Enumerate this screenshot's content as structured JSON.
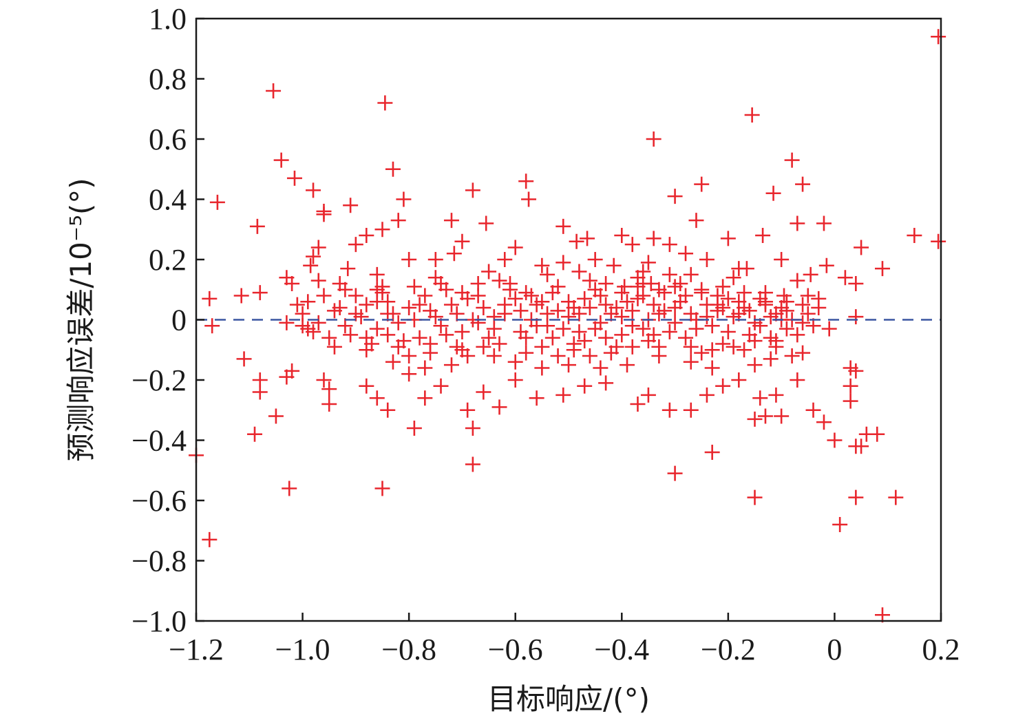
{
  "chart_data": {
    "type": "scatter",
    "xlabel": "目标响应/(°)",
    "ylabel": "预测响应误差/10⁻⁵(°)",
    "xlim": [
      -1.2,
      0.2
    ],
    "ylim": [
      -1.0,
      1.0
    ],
    "x_ticks": [
      -1.2,
      -1.0,
      -0.8,
      -0.6,
      -0.4,
      -0.2,
      0,
      0.2
    ],
    "y_ticks": [
      -1.0,
      -0.8,
      -0.6,
      -0.4,
      -0.2,
      0,
      0.2,
      0.4,
      0.6,
      0.8,
      1.0
    ],
    "x_tick_labels": [
      "−1.2",
      "−1.0",
      "−0.8",
      "−0.6",
      "−0.4",
      "−0.2",
      "0",
      "0.2"
    ],
    "y_tick_labels": [
      "−1.0",
      "−0.8",
      "−0.6",
      "−0.4",
      "−0.2",
      "0",
      "0.2",
      "0.4",
      "0.6",
      "0.8",
      "1.0"
    ],
    "reference_line": {
      "y": 0,
      "style": "dashed",
      "color": "#3a55a0"
    },
    "marker": "plus",
    "marker_color": "#e8262d",
    "points": [
      [
        0.195,
        0.94
      ],
      [
        0.195,
        0.26
      ],
      [
        -1.055,
        0.76
      ],
      [
        -0.845,
        0.72
      ],
      [
        -0.155,
        0.68
      ],
      [
        -0.34,
        0.6
      ],
      [
        -1.04,
        0.53
      ],
      [
        -0.83,
        0.5
      ],
      [
        -1.015,
        0.47
      ],
      [
        -0.08,
        0.53
      ],
      [
        -0.58,
        0.46
      ],
      [
        -0.06,
        0.45
      ],
      [
        -0.25,
        0.45
      ],
      [
        -0.68,
        0.43
      ],
      [
        -0.98,
        0.43
      ],
      [
        -0.3,
        0.41
      ],
      [
        -0.115,
        0.42
      ],
      [
        -0.575,
        0.4
      ],
      [
        -0.81,
        0.4
      ],
      [
        -1.16,
        0.39
      ],
      [
        -0.91,
        0.38
      ],
      [
        -0.96,
        0.35
      ],
      [
        -0.72,
        0.33
      ],
      [
        -1.085,
        0.31
      ],
      [
        -0.655,
        0.32
      ],
      [
        -0.51,
        0.31
      ],
      [
        -0.82,
        0.33
      ],
      [
        -0.07,
        0.32
      ],
      [
        -0.02,
        0.32
      ],
      [
        -0.26,
        0.33
      ],
      [
        -0.88,
        0.28
      ],
      [
        -0.4,
        0.28
      ],
      [
        -0.34,
        0.27
      ],
      [
        -0.465,
        0.27
      ],
      [
        -0.31,
        0.25
      ],
      [
        -0.135,
        0.28
      ],
      [
        -0.2,
        0.27
      ],
      [
        0.15,
        0.28
      ],
      [
        -0.97,
        0.24
      ],
      [
        -0.6,
        0.24
      ],
      [
        -0.38,
        0.25
      ],
      [
        0.05,
        0.24
      ],
      [
        -0.485,
        0.26
      ],
      [
        -0.715,
        0.22
      ],
      [
        -0.8,
        0.2
      ],
      [
        -0.98,
        0.21
      ],
      [
        -0.1,
        0.2
      ],
      [
        -0.015,
        0.18
      ],
      [
        0.09,
        0.17
      ],
      [
        -0.51,
        0.19
      ],
      [
        -0.985,
        0.18
      ],
      [
        -0.915,
        0.17
      ],
      [
        -0.415,
        0.18
      ],
      [
        -0.165,
        0.17
      ],
      [
        -0.045,
        0.15
      ],
      [
        -0.86,
        0.15
      ],
      [
        -0.75,
        0.14
      ],
      [
        -0.27,
        0.15
      ],
      [
        0.04,
        0.12
      ],
      [
        -1.115,
        0.08
      ],
      [
        -1.175,
        0.07
      ],
      [
        -1.08,
        0.09
      ],
      [
        -1.02,
        0.12
      ],
      [
        -0.095,
        0.08
      ],
      [
        -0.03,
        0.07
      ],
      [
        -1.17,
        -0.02
      ],
      [
        -0.395,
        0.11
      ],
      [
        -0.345,
        0.12
      ],
      [
        -0.43,
        0.05
      ],
      [
        -0.36,
        0.08
      ],
      [
        -0.33,
        0.02
      ],
      [
        -0.29,
        0.06
      ],
      [
        -0.25,
        0.09
      ],
      [
        -0.22,
        0.03
      ],
      [
        -0.2,
        0.07
      ],
      [
        -0.17,
        0.04
      ],
      [
        -0.15,
        -0.01
      ],
      [
        -0.13,
        0.05
      ],
      [
        -0.11,
        0.02
      ],
      [
        -0.09,
        -0.03
      ],
      [
        -0.56,
        0.05
      ],
      [
        -0.54,
        -0.02
      ],
      [
        -0.52,
        0.03
      ],
      [
        -0.5,
        0.01
      ],
      [
        -0.48,
        -0.04
      ],
      [
        -0.46,
        0.04
      ],
      [
        -0.44,
        -0.01
      ],
      [
        -0.42,
        0.02
      ],
      [
        -0.4,
        -0.05
      ],
      [
        -0.38,
        0.03
      ],
      [
        -0.62,
        0.02
      ],
      [
        -0.64,
        -0.03
      ],
      [
        -0.66,
        0.04
      ],
      [
        -0.68,
        0.0
      ],
      [
        -0.7,
        -0.04
      ],
      [
        -0.72,
        0.05
      ],
      [
        -0.74,
        -0.02
      ],
      [
        -0.76,
        0.03
      ],
      [
        -0.78,
        -0.06
      ],
      [
        -0.8,
        0.04
      ],
      [
        -0.82,
        -0.01
      ],
      [
        -0.84,
        0.06
      ],
      [
        -0.86,
        -0.03
      ],
      [
        -0.88,
        0.05
      ],
      [
        -0.9,
        0.02
      ],
      [
        -0.58,
        -0.06
      ],
      [
        -0.6,
        0.07
      ],
      [
        -0.63,
        -0.08
      ],
      [
        -0.67,
        0.08
      ],
      [
        -0.71,
        -0.09
      ],
      [
        -0.53,
        0.09
      ],
      [
        -0.49,
        -0.08
      ],
      [
        -0.45,
        0.1
      ],
      [
        -0.41,
        -0.09
      ],
      [
        -0.37,
        0.11
      ],
      [
        -0.35,
        -0.07
      ],
      [
        -0.32,
        0.09
      ],
      [
        -0.28,
        -0.06
      ],
      [
        -0.24,
        0.05
      ],
      [
        -0.21,
        -0.08
      ],
      [
        -0.57,
        0.0
      ],
      [
        -0.55,
        0.06
      ],
      [
        -0.59,
        -0.04
      ],
      [
        -0.61,
        0.1
      ],
      [
        -0.65,
        -0.06
      ],
      [
        -0.69,
        0.07
      ],
      [
        -0.73,
        -0.05
      ],
      [
        -0.77,
        0.08
      ],
      [
        -0.81,
        -0.07
      ],
      [
        -0.85,
        0.09
      ],
      [
        -0.47,
        0.07
      ],
      [
        -0.43,
        -0.06
      ],
      [
        -0.39,
        0.06
      ],
      [
        -0.36,
        -0.03
      ],
      [
        -0.34,
        0.05
      ],
      [
        -0.31,
        -0.04
      ],
      [
        -0.27,
        0.02
      ],
      [
        -0.23,
        -0.02
      ],
      [
        -0.19,
        0.01
      ],
      [
        -0.16,
        -0.05
      ],
      [
        -0.69,
        -0.12
      ],
      [
        -0.74,
        0.12
      ],
      [
        -0.63,
        0.13
      ],
      [
        -0.58,
        -0.11
      ],
      [
        -0.52,
        -0.12
      ],
      [
        -0.46,
        0.13
      ],
      [
        -0.42,
        -0.11
      ],
      [
        -0.37,
        0.14
      ],
      [
        -0.33,
        -0.12
      ],
      [
        -0.29,
        0.12
      ],
      [
        -0.25,
        -0.11
      ],
      [
        -0.21,
        0.11
      ],
      [
        -0.17,
        -0.1
      ],
      [
        -0.13,
        0.09
      ],
      [
        -0.11,
        -0.09
      ],
      [
        -0.8,
        -0.12
      ],
      [
        -0.85,
        0.11
      ],
      [
        -0.88,
        -0.1
      ],
      [
        -0.92,
        0.1
      ],
      [
        -0.94,
        -0.09
      ],
      [
        -0.96,
        0.08
      ],
      [
        -0.99,
        -0.03
      ],
      [
        -1.01,
        0.05
      ],
      [
        -1.03,
        -0.01
      ],
      [
        -1.0,
        0.02
      ],
      [
        -0.93,
        0.04
      ],
      [
        -0.91,
        -0.05
      ],
      [
        -0.89,
        0.01
      ],
      [
        -0.87,
        -0.08
      ],
      [
        -0.83,
        0.02
      ],
      [
        -0.79,
        0.0
      ],
      [
        -0.75,
        0.01
      ],
      [
        -0.71,
        0.02
      ],
      [
        -0.67,
        -0.01
      ],
      [
        -0.64,
        0.01
      ],
      [
        -0.56,
        -0.02
      ],
      [
        -0.53,
        -0.06
      ],
      [
        -0.5,
        0.06
      ],
      [
        -0.48,
        0.02
      ],
      [
        -0.45,
        -0.03
      ],
      [
        -0.41,
        0.04
      ],
      [
        -0.38,
        -0.02
      ],
      [
        -0.35,
        0.0
      ],
      [
        -0.32,
        0.03
      ],
      [
        -0.3,
        -0.01
      ],
      [
        -0.26,
        0.0
      ],
      [
        -0.22,
        0.05
      ],
      [
        -0.18,
        0.02
      ],
      [
        -0.14,
        -0.02
      ],
      [
        -0.12,
        0.01
      ],
      [
        -0.1,
        0.04
      ],
      [
        -0.08,
        0.0
      ],
      [
        -0.06,
        -0.01
      ],
      [
        -0.05,
        0.02
      ],
      [
        -0.04,
        -0.02
      ],
      [
        -0.6,
        -0.14
      ],
      [
        -0.55,
        -0.16
      ],
      [
        -0.5,
        -0.15
      ],
      [
        -0.44,
        -0.16
      ],
      [
        -0.39,
        -0.15
      ],
      [
        -0.72,
        -0.15
      ],
      [
        -0.77,
        -0.16
      ],
      [
        -0.83,
        -0.14
      ],
      [
        -0.65,
        0.16
      ],
      [
        -0.54,
        0.15
      ],
      [
        -0.48,
        0.16
      ],
      [
        -0.36,
        0.16
      ],
      [
        -0.31,
        0.15
      ],
      [
        -0.27,
        -0.14
      ],
      [
        -0.23,
        -0.16
      ],
      [
        -0.19,
        0.14
      ],
      [
        -0.15,
        -0.15
      ],
      [
        -0.12,
        -0.13
      ],
      [
        -0.08,
        -0.12
      ],
      [
        -0.06,
        -0.11
      ],
      [
        -0.98,
        -0.04
      ],
      [
        -0.95,
        -0.06
      ],
      [
        -0.97,
        0.13
      ],
      [
        -1.03,
        0.14
      ],
      [
        -0.93,
        0.12
      ],
      [
        -0.86,
        0.06
      ],
      [
        -0.84,
        -0.05
      ],
      [
        -0.78,
        0.05
      ],
      [
        -0.76,
        -0.08
      ],
      [
        -0.7,
        0.09
      ],
      [
        -0.66,
        -0.09
      ],
      [
        -0.62,
        0.05
      ],
      [
        -0.59,
        0.03
      ],
      [
        -0.57,
        0.08
      ],
      [
        -0.54,
        0.02
      ],
      [
        -0.51,
        -0.03
      ],
      [
        -0.49,
        0.04
      ],
      [
        -0.47,
        -0.07
      ],
      [
        -0.44,
        0.08
      ],
      [
        -0.4,
        0.01
      ],
      [
        -0.37,
        0.07
      ],
      [
        -0.34,
        -0.05
      ],
      [
        -0.33,
        0.1
      ],
      [
        -0.3,
        0.04
      ],
      [
        -0.28,
        0.08
      ],
      [
        -0.26,
        -0.03
      ],
      [
        -0.24,
        0.01
      ],
      [
        -0.22,
        0.08
      ],
      [
        -0.2,
        -0.04
      ],
      [
        -0.18,
        0.06
      ],
      [
        -0.16,
        0.03
      ],
      [
        -0.14,
        0.07
      ],
      [
        -0.12,
        -0.06
      ],
      [
        -0.1,
        0.0
      ],
      [
        -0.09,
        0.06
      ],
      [
        -0.88,
        -0.22
      ],
      [
        -0.86,
        -0.26
      ],
      [
        -0.84,
        -0.3
      ],
      [
        -0.8,
        -0.18
      ],
      [
        -0.77,
        -0.26
      ],
      [
        -0.74,
        -0.22
      ],
      [
        -0.69,
        -0.3
      ],
      [
        -0.66,
        -0.24
      ],
      [
        -0.63,
        -0.29
      ],
      [
        -0.6,
        -0.2
      ],
      [
        -0.56,
        -0.26
      ],
      [
        -0.51,
        -0.25
      ],
      [
        -0.47,
        -0.22
      ],
      [
        -0.43,
        -0.21
      ],
      [
        -0.37,
        -0.28
      ],
      [
        -0.35,
        -0.25
      ],
      [
        -0.31,
        -0.3
      ],
      [
        -0.27,
        -0.3
      ],
      [
        -0.24,
        -0.25
      ],
      [
        -0.21,
        -0.22
      ],
      [
        -0.18,
        -0.2
      ],
      [
        -0.14,
        -0.26
      ],
      [
        -0.11,
        -0.25
      ],
      [
        -0.1,
        -0.32
      ],
      [
        -0.07,
        -0.2
      ],
      [
        -0.04,
        -0.3
      ],
      [
        -0.02,
        -0.34
      ],
      [
        0.03,
        -0.22
      ],
      [
        0.03,
        -0.27
      ],
      [
        0.04,
        -0.17
      ],
      [
        -1.03,
        -0.19
      ],
      [
        -1.02,
        -0.17
      ],
      [
        -0.96,
        -0.2
      ],
      [
        -0.95,
        -0.23
      ],
      [
        -0.95,
        -0.28
      ],
      [
        -1.08,
        -0.24
      ],
      [
        -1.08,
        -0.2
      ],
      [
        -1.05,
        -0.32
      ],
      [
        -1.09,
        -0.38
      ],
      [
        -1.11,
        -0.13
      ],
      [
        -1.2,
        -0.45
      ],
      [
        -1.175,
        -0.73
      ],
      [
        -1.025,
        -0.56
      ],
      [
        -0.85,
        -0.56
      ],
      [
        -0.68,
        -0.48
      ],
      [
        -0.79,
        -0.36
      ],
      [
        -0.68,
        -0.36
      ],
      [
        -0.3,
        -0.51
      ],
      [
        -0.23,
        -0.44
      ],
      [
        -0.15,
        -0.59
      ],
      [
        0.01,
        -0.68
      ],
      [
        0.04,
        -0.59
      ],
      [
        0.115,
        -0.59
      ],
      [
        0.09,
        -0.98
      ],
      [
        0.04,
        -0.42
      ],
      [
        0.0,
        -0.4
      ],
      [
        0.06,
        -0.38
      ],
      [
        0.08,
        -0.38
      ],
      [
        -0.15,
        -0.33
      ],
      [
        -0.13,
        -0.32
      ],
      [
        0.04,
        0.01
      ],
      [
        -0.01,
        -0.03
      ],
      [
        0.02,
        0.14
      ],
      [
        0.03,
        -0.16
      ],
      [
        0.05,
        -0.42
      ],
      [
        -0.96,
        0.36
      ],
      [
        -0.85,
        0.3
      ],
      [
        -0.9,
        0.25
      ],
      [
        -0.75,
        0.2
      ],
      [
        -0.7,
        0.26
      ],
      [
        -0.62,
        0.2
      ],
      [
        -0.55,
        0.18
      ],
      [
        -0.45,
        0.2
      ],
      [
        -0.35,
        0.19
      ],
      [
        -0.28,
        0.22
      ],
      [
        -0.24,
        0.2
      ],
      [
        -0.18,
        0.17
      ],
      [
        -0.07,
        0.13
      ],
      [
        -0.05,
        0.08
      ],
      [
        -0.03,
        0.04
      ],
      [
        -1.0,
        -0.02
      ],
      [
        -0.99,
        0.06
      ],
      [
        -0.97,
        -0.01
      ],
      [
        -0.94,
        0.03
      ],
      [
        -0.92,
        -0.02
      ],
      [
        -0.9,
        0.08
      ],
      [
        -0.88,
        -0.06
      ],
      [
        -0.86,
        0.1
      ],
      [
        -0.84,
        0.02
      ],
      [
        -0.82,
        -0.09
      ],
      [
        -0.79,
        0.11
      ],
      [
        -0.76,
        -0.11
      ],
      [
        -0.73,
        0.1
      ],
      [
        -0.7,
        -0.1
      ],
      [
        -0.67,
        0.12
      ],
      [
        -0.64,
        -0.12
      ],
      [
        -0.61,
        0.12
      ],
      [
        -0.58,
        0.09
      ],
      [
        -0.55,
        -0.09
      ],
      [
        -0.52,
        0.11
      ],
      [
        -0.49,
        -0.1
      ],
      [
        -0.46,
        -0.12
      ],
      [
        -0.43,
        0.12
      ],
      [
        -0.4,
        0.09
      ],
      [
        -0.38,
        -0.09
      ],
      [
        -0.36,
        0.12
      ],
      [
        -0.33,
        -0.09
      ],
      [
        -0.3,
        0.11
      ],
      [
        -0.27,
        -0.09
      ],
      [
        -0.25,
        0.1
      ],
      [
        -0.23,
        -0.1
      ],
      [
        -0.21,
        0.04
      ],
      [
        -0.19,
        -0.09
      ],
      [
        -0.17,
        0.09
      ],
      [
        -0.15,
        -0.07
      ],
      [
        -0.13,
        0.06
      ],
      [
        -0.11,
        -0.07
      ],
      [
        -0.09,
        0.03
      ],
      [
        -0.07,
        -0.05
      ],
      [
        -0.06,
        0.05
      ]
    ]
  }
}
